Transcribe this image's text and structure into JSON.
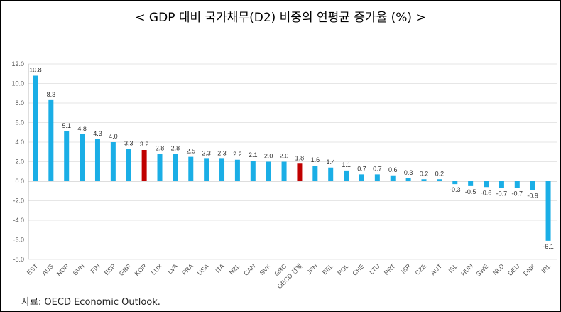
{
  "chart_data": {
    "type": "bar",
    "title": "< GDP 대비 국가채무(D2) 비중의 연평균 증가율 (%) >",
    "categories": [
      "EST",
      "AUS",
      "NOR",
      "SVN",
      "FIN",
      "ESP",
      "GBR",
      "KOR",
      "LUX",
      "LVA",
      "FRA",
      "USA",
      "ITA",
      "NZL",
      "CAN",
      "SVK",
      "GRC",
      "OECD 전체",
      "JPN",
      "BEL",
      "POL",
      "CHE",
      "LTU",
      "PRT",
      "ISR",
      "CZE",
      "AUT",
      "ISL",
      "HUN",
      "SWE",
      "NLD",
      "DEU",
      "DNK",
      "IRL"
    ],
    "values": [
      10.8,
      8.3,
      5.1,
      4.8,
      4.3,
      4.0,
      3.3,
      3.2,
      2.8,
      2.8,
      2.5,
      2.3,
      2.3,
      2.2,
      2.1,
      2.0,
      2.0,
      1.8,
      1.6,
      1.4,
      1.1,
      0.7,
      0.7,
      0.6,
      0.3,
      0.2,
      0.2,
      -0.3,
      -0.5,
      -0.6,
      -0.7,
      -0.7,
      -0.9,
      -6.1
    ],
    "ylim": [
      -8,
      12
    ],
    "yticks": [
      "-8.0",
      "-6.0",
      "-4.0",
      "-2.0",
      "0.0",
      "2.0",
      "4.0",
      "6.0",
      "8.0",
      "10.0",
      "12.0"
    ],
    "grid": true,
    "colors": {
      "default": "#1AAEE6",
      "highlight": "#C00000"
    },
    "highlighted": [
      "KOR",
      "OECD 전체"
    ],
    "xlabel": "",
    "ylabel": ""
  },
  "source": "자료: OECD Economic Outlook."
}
